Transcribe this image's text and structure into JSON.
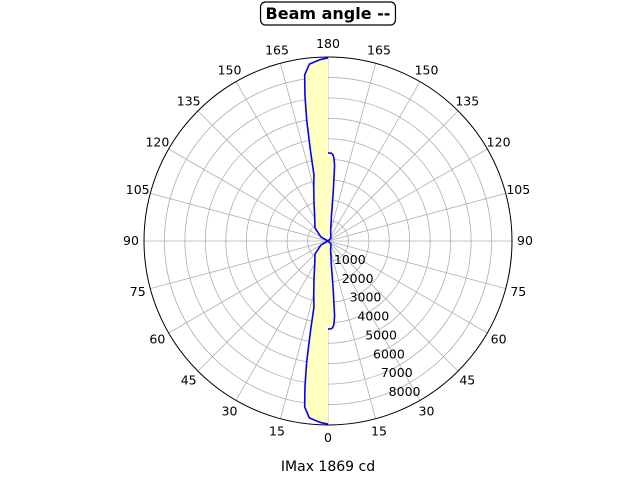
{
  "chart_data": {
    "type": "line",
    "subtype": "polar",
    "title": "Beam angle --",
    "xlabel": "IMax 1869 cd",
    "angular_ticks": {
      "upper_left": [
        "165",
        "150",
        "135",
        "120",
        "105"
      ],
      "top": "180",
      "upper_right": [
        "165",
        "150",
        "135",
        "120",
        "105"
      ],
      "left": "90",
      "right": "90",
      "lower_left": [
        "75",
        "60",
        "45",
        "30",
        "15"
      ],
      "bottom": "0",
      "lower_right": [
        "15",
        "30",
        "45",
        "60",
        "75"
      ]
    },
    "radial_ticks": [
      "1000",
      "2000",
      "3000",
      "4000",
      "5000",
      "6000",
      "7000",
      "8000"
    ],
    "rmax": 9000,
    "grid": true,
    "series": [
      {
        "side": "left",
        "color": "#0000ff",
        "fill": "#ffffc0",
        "points": [
          {
            "angle": 0,
            "value": 8950
          },
          {
            "angle": 2,
            "value": 8900
          },
          {
            "angle": 4,
            "value": 8800
          },
          {
            "angle": 6,
            "value": 8700
          },
          {
            "angle": 8,
            "value": 8200
          },
          {
            "angle": 9,
            "value": 7200
          },
          {
            "angle": 10,
            "value": 6000
          },
          {
            "angle": 11,
            "value": 4500
          },
          {
            "angle": 12,
            "value": 3300
          },
          {
            "angle": 15,
            "value": 2700
          },
          {
            "angle": 20,
            "value": 2000
          },
          {
            "angle": 30,
            "value": 1300
          },
          {
            "angle": 45,
            "value": 900
          },
          {
            "angle": 60,
            "value": 400
          },
          {
            "angle": 90,
            "value": 0
          },
          {
            "angle": 120,
            "value": 400
          },
          {
            "angle": 135,
            "value": 900
          },
          {
            "angle": 150,
            "value": 1300
          },
          {
            "angle": 160,
            "value": 2000
          },
          {
            "angle": 165,
            "value": 2700
          },
          {
            "angle": 168,
            "value": 3300
          },
          {
            "angle": 169,
            "value": 4500
          },
          {
            "angle": 170,
            "value": 6000
          },
          {
            "angle": 171,
            "value": 7200
          },
          {
            "angle": 172,
            "value": 8200
          },
          {
            "angle": 174,
            "value": 8700
          },
          {
            "angle": 176,
            "value": 8800
          },
          {
            "angle": 178,
            "value": 8900
          },
          {
            "angle": 180,
            "value": 8950
          }
        ]
      },
      {
        "side": "right",
        "color": "#0000ff",
        "fill": "#ffffc0",
        "points": [
          {
            "angle": 0,
            "value": 4300
          },
          {
            "angle": 1,
            "value": 4300
          },
          {
            "angle": 2,
            "value": 4300
          },
          {
            "angle": 3,
            "value": 4250
          },
          {
            "angle": 4,
            "value": 4100
          },
          {
            "angle": 5,
            "value": 3700
          },
          {
            "angle": 6,
            "value": 2500
          },
          {
            "angle": 8,
            "value": 1200
          },
          {
            "angle": 15,
            "value": 500
          },
          {
            "angle": 45,
            "value": 200
          },
          {
            "angle": 90,
            "value": 0
          },
          {
            "angle": 135,
            "value": 200
          },
          {
            "angle": 165,
            "value": 500
          },
          {
            "angle": 172,
            "value": 1200
          },
          {
            "angle": 174,
            "value": 2500
          },
          {
            "angle": 175,
            "value": 3700
          },
          {
            "angle": 176,
            "value": 4100
          },
          {
            "angle": 177,
            "value": 4250
          },
          {
            "angle": 178,
            "value": 4300
          },
          {
            "angle": 179,
            "value": 4300
          },
          {
            "angle": 180,
            "value": 4300
          }
        ]
      }
    ]
  }
}
